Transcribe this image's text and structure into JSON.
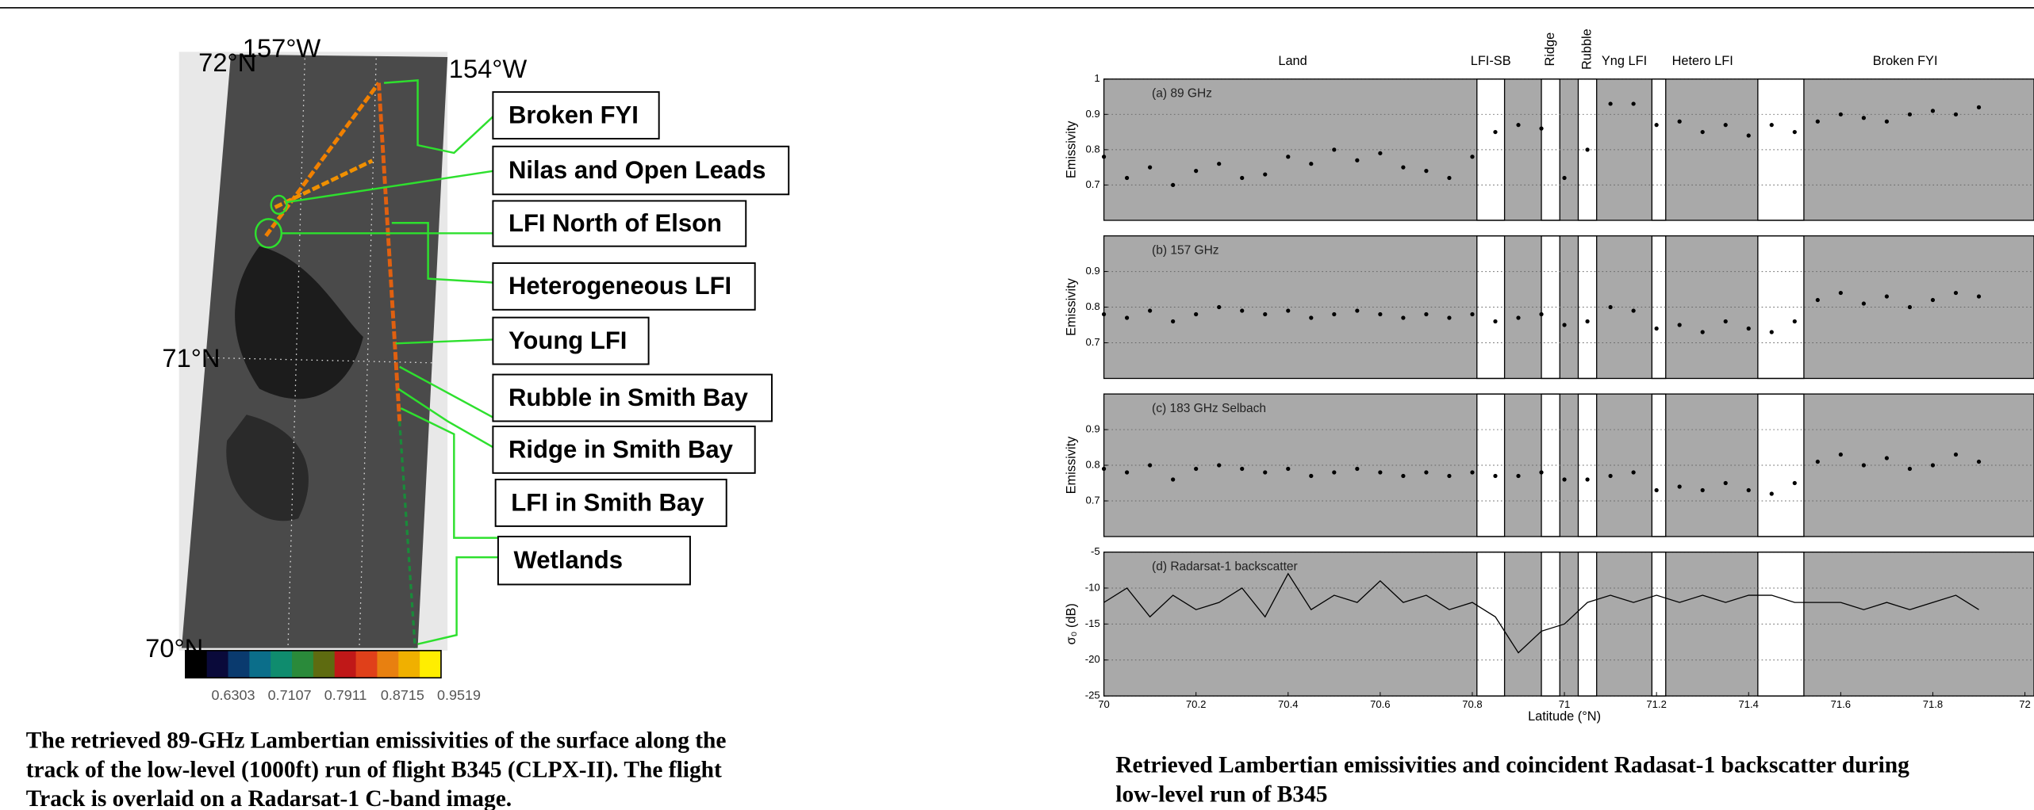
{
  "map": {
    "lat_labels": [
      "72°N",
      "71°N",
      "70°N"
    ],
    "lon_labels": [
      "157°W",
      "154°W"
    ],
    "colorbar": {
      "colors": [
        "#000000",
        "#0a0a3a",
        "#0a3a6e",
        "#0b6e8a",
        "#0f8c6e",
        "#2a8a3a",
        "#5e6b10",
        "#c01818",
        "#e0401a",
        "#e88010",
        "#f0b000",
        "#ffee00"
      ],
      "ticks": [
        0.6303,
        0.7107,
        0.7911,
        0.8715,
        0.9519
      ]
    },
    "legend_boxes": [
      "Broken FYI",
      "Nilas and Open Leads",
      "LFI North of Elson",
      "Heterogeneous LFI",
      "Young LFI",
      "Rubble in Smith Bay",
      "Ridge in Smith Bay",
      "LFI in Smith Bay",
      "Wetlands"
    ]
  },
  "left_caption": [
    "The retrieved  89-GHz Lambertian emissivities of the surface along the",
    "track of the low-level (1000ft) run of flight B345 (CLPX-II). The flight",
    "Track is overlaid on a Radarsat-1 C-band image."
  ],
  "regions": [
    {
      "label": "Land",
      "lat": 70.41
    },
    {
      "label": "LFI-SB",
      "lat": 70.84
    },
    {
      "label": "Ridge",
      "lat": 70.97
    },
    {
      "label": "Rubble",
      "lat": 71.05
    },
    {
      "label": "Yng LFI",
      "lat": 71.13
    },
    {
      "label": "Hetero LFI",
      "lat": 71.3
    },
    {
      "label": "Broken FYI",
      "lat": 71.74
    }
  ],
  "bands": [
    [
      70.81,
      70.87
    ],
    [
      70.95,
      70.99
    ],
    [
      71.03,
      71.07
    ],
    [
      71.19,
      71.22
    ],
    [
      71.42,
      71.52
    ]
  ],
  "chart_data": [
    {
      "type": "scatter",
      "title": "(a) 89 GHz",
      "ylabel": "Emissivity",
      "color": "#000000",
      "grid": true,
      "xlim": [
        70,
        72
      ],
      "ylim": [
        0.6,
        1
      ],
      "yticks": [
        0.7,
        0.8,
        0.9,
        1
      ],
      "x": [
        70,
        70.05,
        70.1,
        70.15,
        70.2,
        70.25,
        70.3,
        70.35,
        70.4,
        70.45,
        70.5,
        70.55,
        70.6,
        70.65,
        70.7,
        70.75,
        70.8,
        70.85,
        70.9,
        70.95,
        71,
        71.05,
        71.1,
        71.15,
        71.2,
        71.25,
        71.3,
        71.35,
        71.4,
        71.45,
        71.5,
        71.55,
        71.6,
        71.65,
        71.7,
        71.75,
        71.8,
        71.85,
        71.9
      ],
      "values": [
        0.78,
        0.72,
        0.75,
        0.7,
        0.74,
        0.76,
        0.72,
        0.73,
        0.78,
        0.76,
        0.8,
        0.77,
        0.79,
        0.75,
        0.74,
        0.72,
        0.78,
        0.85,
        0.87,
        0.86,
        0.72,
        0.8,
        0.93,
        0.93,
        0.87,
        0.88,
        0.85,
        0.87,
        0.84,
        0.87,
        0.85,
        0.88,
        0.9,
        0.89,
        0.88,
        0.9,
        0.91,
        0.9,
        0.92
      ]
    },
    {
      "type": "scatter",
      "title": "(b) 157 GHz",
      "ylabel": "Emissivity",
      "color": "#000000",
      "grid": true,
      "xlim": [
        70,
        72
      ],
      "ylim": [
        0.6,
        1
      ],
      "yticks": [
        0.7,
        0.8,
        0.9
      ],
      "x": [
        70,
        70.05,
        70.1,
        70.15,
        70.2,
        70.25,
        70.3,
        70.35,
        70.4,
        70.45,
        70.5,
        70.55,
        70.6,
        70.65,
        70.7,
        70.75,
        70.8,
        70.85,
        70.9,
        70.95,
        71,
        71.05,
        71.1,
        71.15,
        71.2,
        71.25,
        71.3,
        71.35,
        71.4,
        71.45,
        71.5,
        71.55,
        71.6,
        71.65,
        71.7,
        71.75,
        71.8,
        71.85,
        71.9
      ],
      "values": [
        0.78,
        0.77,
        0.79,
        0.76,
        0.78,
        0.8,
        0.79,
        0.78,
        0.79,
        0.77,
        0.78,
        0.79,
        0.78,
        0.77,
        0.78,
        0.77,
        0.78,
        0.76,
        0.77,
        0.78,
        0.75,
        0.76,
        0.8,
        0.79,
        0.74,
        0.75,
        0.73,
        0.76,
        0.74,
        0.73,
        0.76,
        0.82,
        0.84,
        0.81,
        0.83,
        0.8,
        0.82,
        0.84,
        0.83
      ]
    },
    {
      "type": "scatter",
      "title": "(c) 183 GHz Selbach",
      "ylabel": "Emissivity",
      "color": "#000000",
      "grid": true,
      "xlim": [
        70,
        72
      ],
      "ylim": [
        0.6,
        1
      ],
      "yticks": [
        0.7,
        0.8,
        0.9
      ],
      "x": [
        70,
        70.05,
        70.1,
        70.15,
        70.2,
        70.25,
        70.3,
        70.35,
        70.4,
        70.45,
        70.5,
        70.55,
        70.6,
        70.65,
        70.7,
        70.75,
        70.8,
        70.85,
        70.9,
        70.95,
        71,
        71.05,
        71.1,
        71.15,
        71.2,
        71.25,
        71.3,
        71.35,
        71.4,
        71.45,
        71.5,
        71.55,
        71.6,
        71.65,
        71.7,
        71.75,
        71.8,
        71.85,
        71.9
      ],
      "values": [
        0.79,
        0.78,
        0.8,
        0.76,
        0.79,
        0.8,
        0.79,
        0.78,
        0.79,
        0.77,
        0.78,
        0.79,
        0.78,
        0.77,
        0.78,
        0.77,
        0.78,
        0.77,
        0.77,
        0.78,
        0.76,
        0.76,
        0.77,
        0.78,
        0.73,
        0.74,
        0.73,
        0.75,
        0.73,
        0.72,
        0.75,
        0.81,
        0.83,
        0.8,
        0.82,
        0.79,
        0.8,
        0.83,
        0.81
      ]
    },
    {
      "type": "line",
      "title": "(d) Radarsat-1 backscatter",
      "ylabel": "σ₀ (dB)",
      "xlabel": "Latitude (°N)",
      "color": "#000000",
      "grid": true,
      "xlim": [
        70,
        72
      ],
      "ylim": [
        -25,
        -5
      ],
      "yticks": [
        -25,
        -20,
        -15,
        -10,
        -5
      ],
      "xticks": [
        70,
        70.2,
        70.4,
        70.6,
        70.8,
        71,
        71.2,
        71.4,
        71.6,
        71.8,
        72
      ],
      "x": [
        70,
        70.05,
        70.1,
        70.15,
        70.2,
        70.25,
        70.3,
        70.35,
        70.4,
        70.45,
        70.5,
        70.55,
        70.6,
        70.65,
        70.7,
        70.75,
        70.8,
        70.85,
        70.9,
        70.95,
        71,
        71.05,
        71.1,
        71.15,
        71.2,
        71.25,
        71.3,
        71.35,
        71.4,
        71.45,
        71.5,
        71.55,
        71.6,
        71.65,
        71.7,
        71.75,
        71.8,
        71.85,
        71.9
      ],
      "values": [
        -12,
        -10,
        -14,
        -11,
        -13,
        -12,
        -10,
        -14,
        -8,
        -13,
        -11,
        -12,
        -9,
        -12,
        -11,
        -13,
        -12,
        -14,
        -19,
        -16,
        -15,
        -12,
        -11,
        -12,
        -11,
        -12,
        -11,
        -12,
        -11,
        -11,
        -12,
        -12,
        -12,
        -13,
        -12,
        -13,
        -12,
        -11,
        -13
      ]
    }
  ],
  "right_caption": [
    "Retrieved Lambertian emissivities and coincident Radasat-1 backscatter during",
    "low-level run of B345"
  ]
}
